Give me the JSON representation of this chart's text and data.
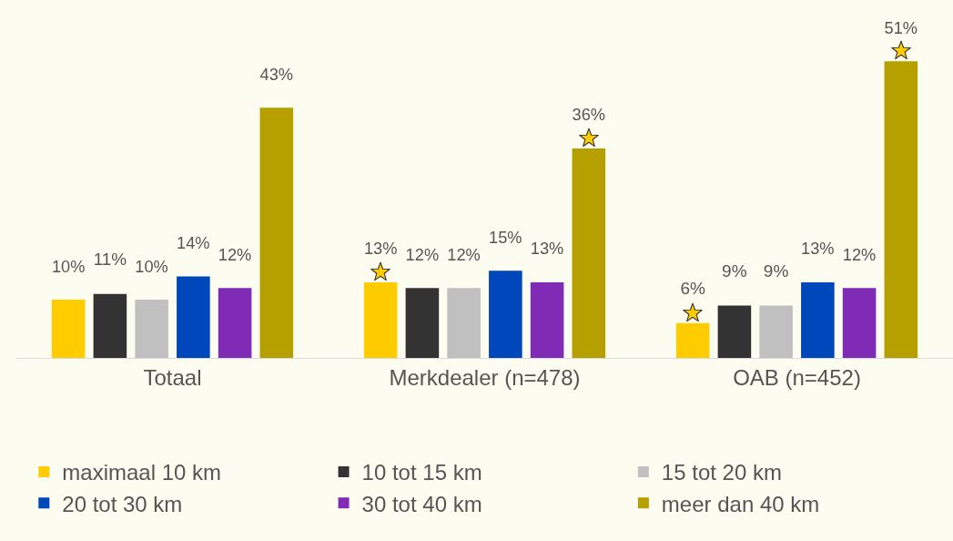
{
  "chart_data": {
    "type": "bar",
    "categories": [
      "Totaal",
      "Merkdealer (n=478)",
      "OAB (n=452)"
    ],
    "series": [
      {
        "name": "maximaal 10 km",
        "color": "#ffcc00",
        "values": [
          10,
          13,
          6
        ],
        "value_labels": [
          "10%",
          "13%",
          "6%"
        ]
      },
      {
        "name": "10 tot 15 km",
        "color": "#333333",
        "values": [
          11,
          12,
          9
        ],
        "value_labels": [
          "11%",
          "12%",
          "9%"
        ]
      },
      {
        "name": "15 tot 20 km",
        "color": "#c0c0c0",
        "values": [
          10,
          12,
          9
        ],
        "value_labels": [
          "10%",
          "12%",
          "9%"
        ]
      },
      {
        "name": "20 tot 30 km",
        "color": "#0047bb",
        "values": [
          14,
          15,
          13
        ],
        "value_labels": [
          "14%",
          "15%",
          "13%"
        ]
      },
      {
        "name": "30 tot 40 km",
        "color": "#7f2bb5",
        "values": [
          12,
          13,
          12
        ],
        "value_labels": [
          "12%",
          "13%",
          "12%"
        ]
      },
      {
        "name": "meer dan 40 km",
        "color": "#b5a000",
        "values": [
          43,
          36,
          51
        ],
        "value_labels": [
          "43%",
          "36%",
          "51%"
        ]
      }
    ],
    "grid": false,
    "legend": "bottom",
    "tick_labels": "x"
  }
}
